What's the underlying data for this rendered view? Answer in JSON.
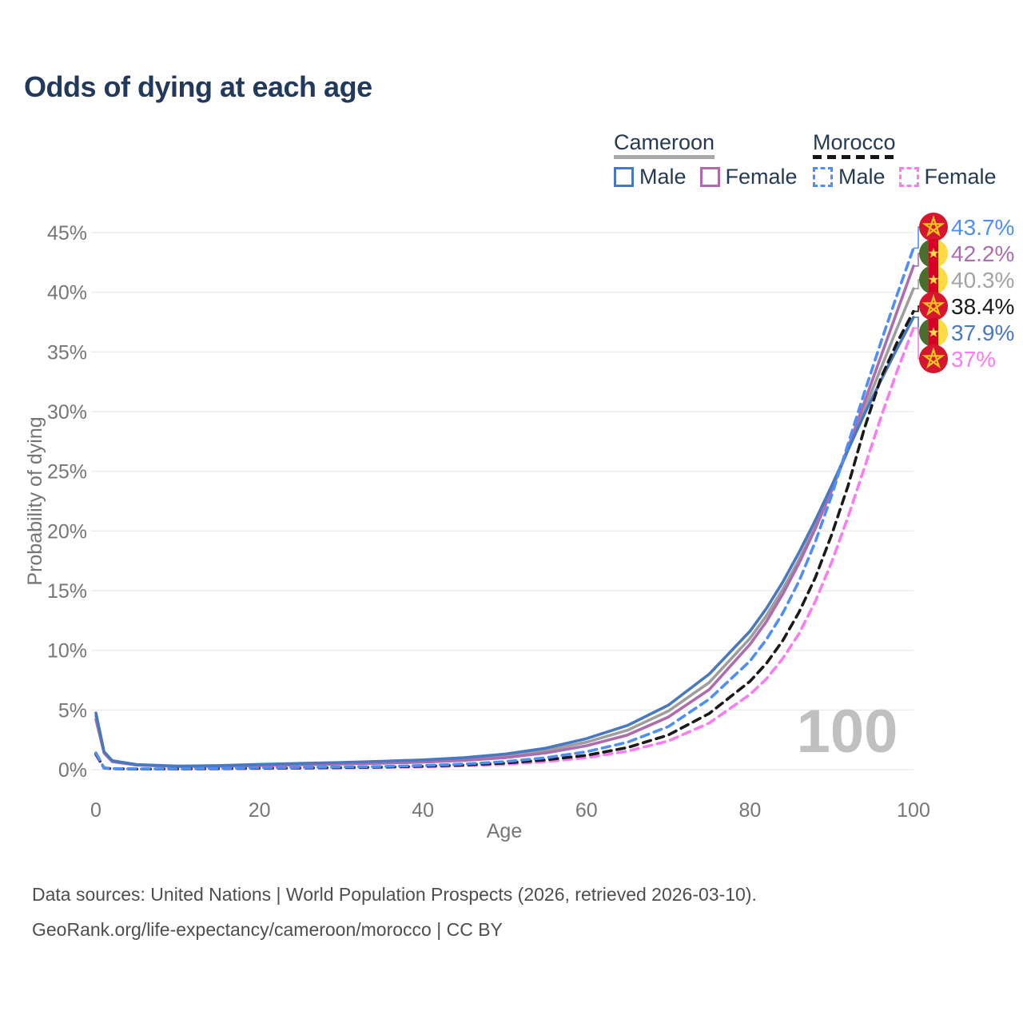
{
  "title": "Odds of dying at each age",
  "watermark": "100",
  "legend": {
    "groups": [
      {
        "label": "Cameroon",
        "line_style": "solid",
        "line_color": "#a8a8a8",
        "items": [
          {
            "label": "Male",
            "color": "#4878c0",
            "style": "solid"
          },
          {
            "label": "Female",
            "color": "#ae6cae",
            "style": "solid"
          }
        ]
      },
      {
        "label": "Morocco",
        "line_style": "dashed",
        "line_color": "#151515",
        "items": [
          {
            "label": "Male",
            "color": "#4d8ff7",
            "style": "dashed"
          },
          {
            "label": "Female",
            "color": "#fa7cf2",
            "style": "dashed"
          }
        ]
      }
    ]
  },
  "footer": {
    "line1": "Data sources: United Nations | World Population Prospects (2026, retrieved 2026-03-10).",
    "line2": "GeoRank.org/life-expectancy/cameroon/morocco | CC BY"
  },
  "chart_data": {
    "type": "line",
    "title": "Odds of dying at each age",
    "xlabel": "Age",
    "ylabel": "Probability of dying",
    "xlim": [
      0,
      100
    ],
    "ylim": [
      0,
      45
    ],
    "grid": "horizontal",
    "legend_position": "top-right",
    "x_ticks": [
      {
        "value": 0,
        "label": "0"
      },
      {
        "value": 20,
        "label": "20"
      },
      {
        "value": 40,
        "label": "40"
      },
      {
        "value": 60,
        "label": "60"
      },
      {
        "value": 80,
        "label": "80"
      },
      {
        "value": 100,
        "label": "100"
      }
    ],
    "y_ticks": [
      {
        "value": 0,
        "label": "0%"
      },
      {
        "value": 5,
        "label": "5%"
      },
      {
        "value": 10,
        "label": "10%"
      },
      {
        "value": 15,
        "label": "15%"
      },
      {
        "value": 20,
        "label": "20%"
      },
      {
        "value": 25,
        "label": "25%"
      },
      {
        "value": 30,
        "label": "30%"
      },
      {
        "value": 35,
        "label": "35%"
      },
      {
        "value": 40,
        "label": "40%"
      },
      {
        "value": 45,
        "label": "45%"
      }
    ],
    "x": [
      0,
      1,
      2,
      5,
      10,
      15,
      20,
      25,
      30,
      35,
      40,
      45,
      50,
      55,
      60,
      65,
      70,
      75,
      80,
      82,
      84,
      86,
      88,
      90,
      92,
      94,
      96,
      98,
      100
    ],
    "series": [
      {
        "id": "cameroon-both",
        "name": "Cameroon Both sexes",
        "country": "Cameroon",
        "flag": "cameroon",
        "style": "solid",
        "color": "#9e9e9e",
        "label_color": "#a3a3a3",
        "end_label": "40.3%",
        "values": [
          4.5,
          1.45,
          0.71,
          0.4,
          0.28,
          0.31,
          0.39,
          0.46,
          0.53,
          0.62,
          0.72,
          0.88,
          1.14,
          1.6,
          2.3,
          3.3,
          4.9,
          7.3,
          11.0,
          12.9,
          15.1,
          17.6,
          20.4,
          23.5,
          26.8,
          30.2,
          33.6,
          37.0,
          40.3
        ]
      },
      {
        "id": "cameroon-female",
        "name": "Cameroon Female",
        "country": "Cameroon",
        "flag": "cameroon",
        "style": "solid",
        "color": "#ae6cae",
        "label_color": "#ae6cae",
        "end_label": "42.2%",
        "values": [
          4.2,
          1.4,
          0.67,
          0.38,
          0.26,
          0.28,
          0.34,
          0.4,
          0.47,
          0.54,
          0.63,
          0.77,
          1.0,
          1.4,
          2.0,
          2.9,
          4.4,
          6.7,
          10.5,
          12.4,
          14.7,
          17.3,
          20.2,
          23.4,
          27.0,
          30.8,
          34.6,
          38.4,
          42.2
        ]
      },
      {
        "id": "cameroon-male",
        "name": "Cameroon Male",
        "country": "Cameroon",
        "flag": "cameroon",
        "style": "solid",
        "color": "#4878c0",
        "label_color": "#4878c0",
        "end_label": "37.9%",
        "values": [
          4.75,
          1.5,
          0.75,
          0.42,
          0.3,
          0.34,
          0.44,
          0.52,
          0.6,
          0.7,
          0.82,
          1.0,
          1.3,
          1.8,
          2.6,
          3.7,
          5.4,
          8.0,
          11.6,
          13.5,
          15.7,
          18.2,
          20.9,
          23.8,
          26.8,
          29.8,
          32.6,
          35.3,
          37.9
        ]
      },
      {
        "id": "morocco-female",
        "name": "Morocco Female",
        "country": "Morocco",
        "flag": "morocco",
        "style": "dashed",
        "color": "#fa7cf2",
        "label_color": "#fa7cf2",
        "end_label": "37%",
        "values": [
          1.25,
          0.13,
          0.075,
          0.05,
          0.05,
          0.07,
          0.1,
          0.12,
          0.14,
          0.18,
          0.23,
          0.32,
          0.45,
          0.67,
          1.0,
          1.55,
          2.4,
          3.9,
          6.3,
          7.6,
          9.3,
          11.4,
          14.1,
          17.4,
          21.2,
          25.3,
          29.5,
          33.4,
          37.0
        ]
      },
      {
        "id": "morocco-both",
        "name": "Morocco Both sexes",
        "country": "Morocco",
        "flag": "morocco",
        "style": "dashed",
        "color": "#1a1a1a",
        "label_color": "#1a1a1a",
        "end_label": "38.4%",
        "values": [
          1.3,
          0.14,
          0.08,
          0.055,
          0.06,
          0.09,
          0.13,
          0.15,
          0.18,
          0.22,
          0.29,
          0.39,
          0.55,
          0.82,
          1.2,
          1.85,
          2.9,
          4.7,
          7.4,
          8.9,
          10.8,
          13.2,
          16.1,
          19.7,
          23.8,
          28.6,
          32.8,
          35.8,
          38.4
        ]
      },
      {
        "id": "morocco-male",
        "name": "Morocco Male",
        "country": "Morocco",
        "flag": "morocco",
        "style": "dashed",
        "color": "#4d8ff7",
        "label_color": "#4d8ff7",
        "end_label": "43.7%",
        "values": [
          1.4,
          0.15,
          0.09,
          0.06,
          0.07,
          0.11,
          0.16,
          0.19,
          0.22,
          0.27,
          0.35,
          0.47,
          0.67,
          1.0,
          1.5,
          2.3,
          3.6,
          5.9,
          9.1,
          10.9,
          13.1,
          15.8,
          19.1,
          23.0,
          27.3,
          31.6,
          35.8,
          39.8,
          43.7
        ]
      }
    ]
  }
}
